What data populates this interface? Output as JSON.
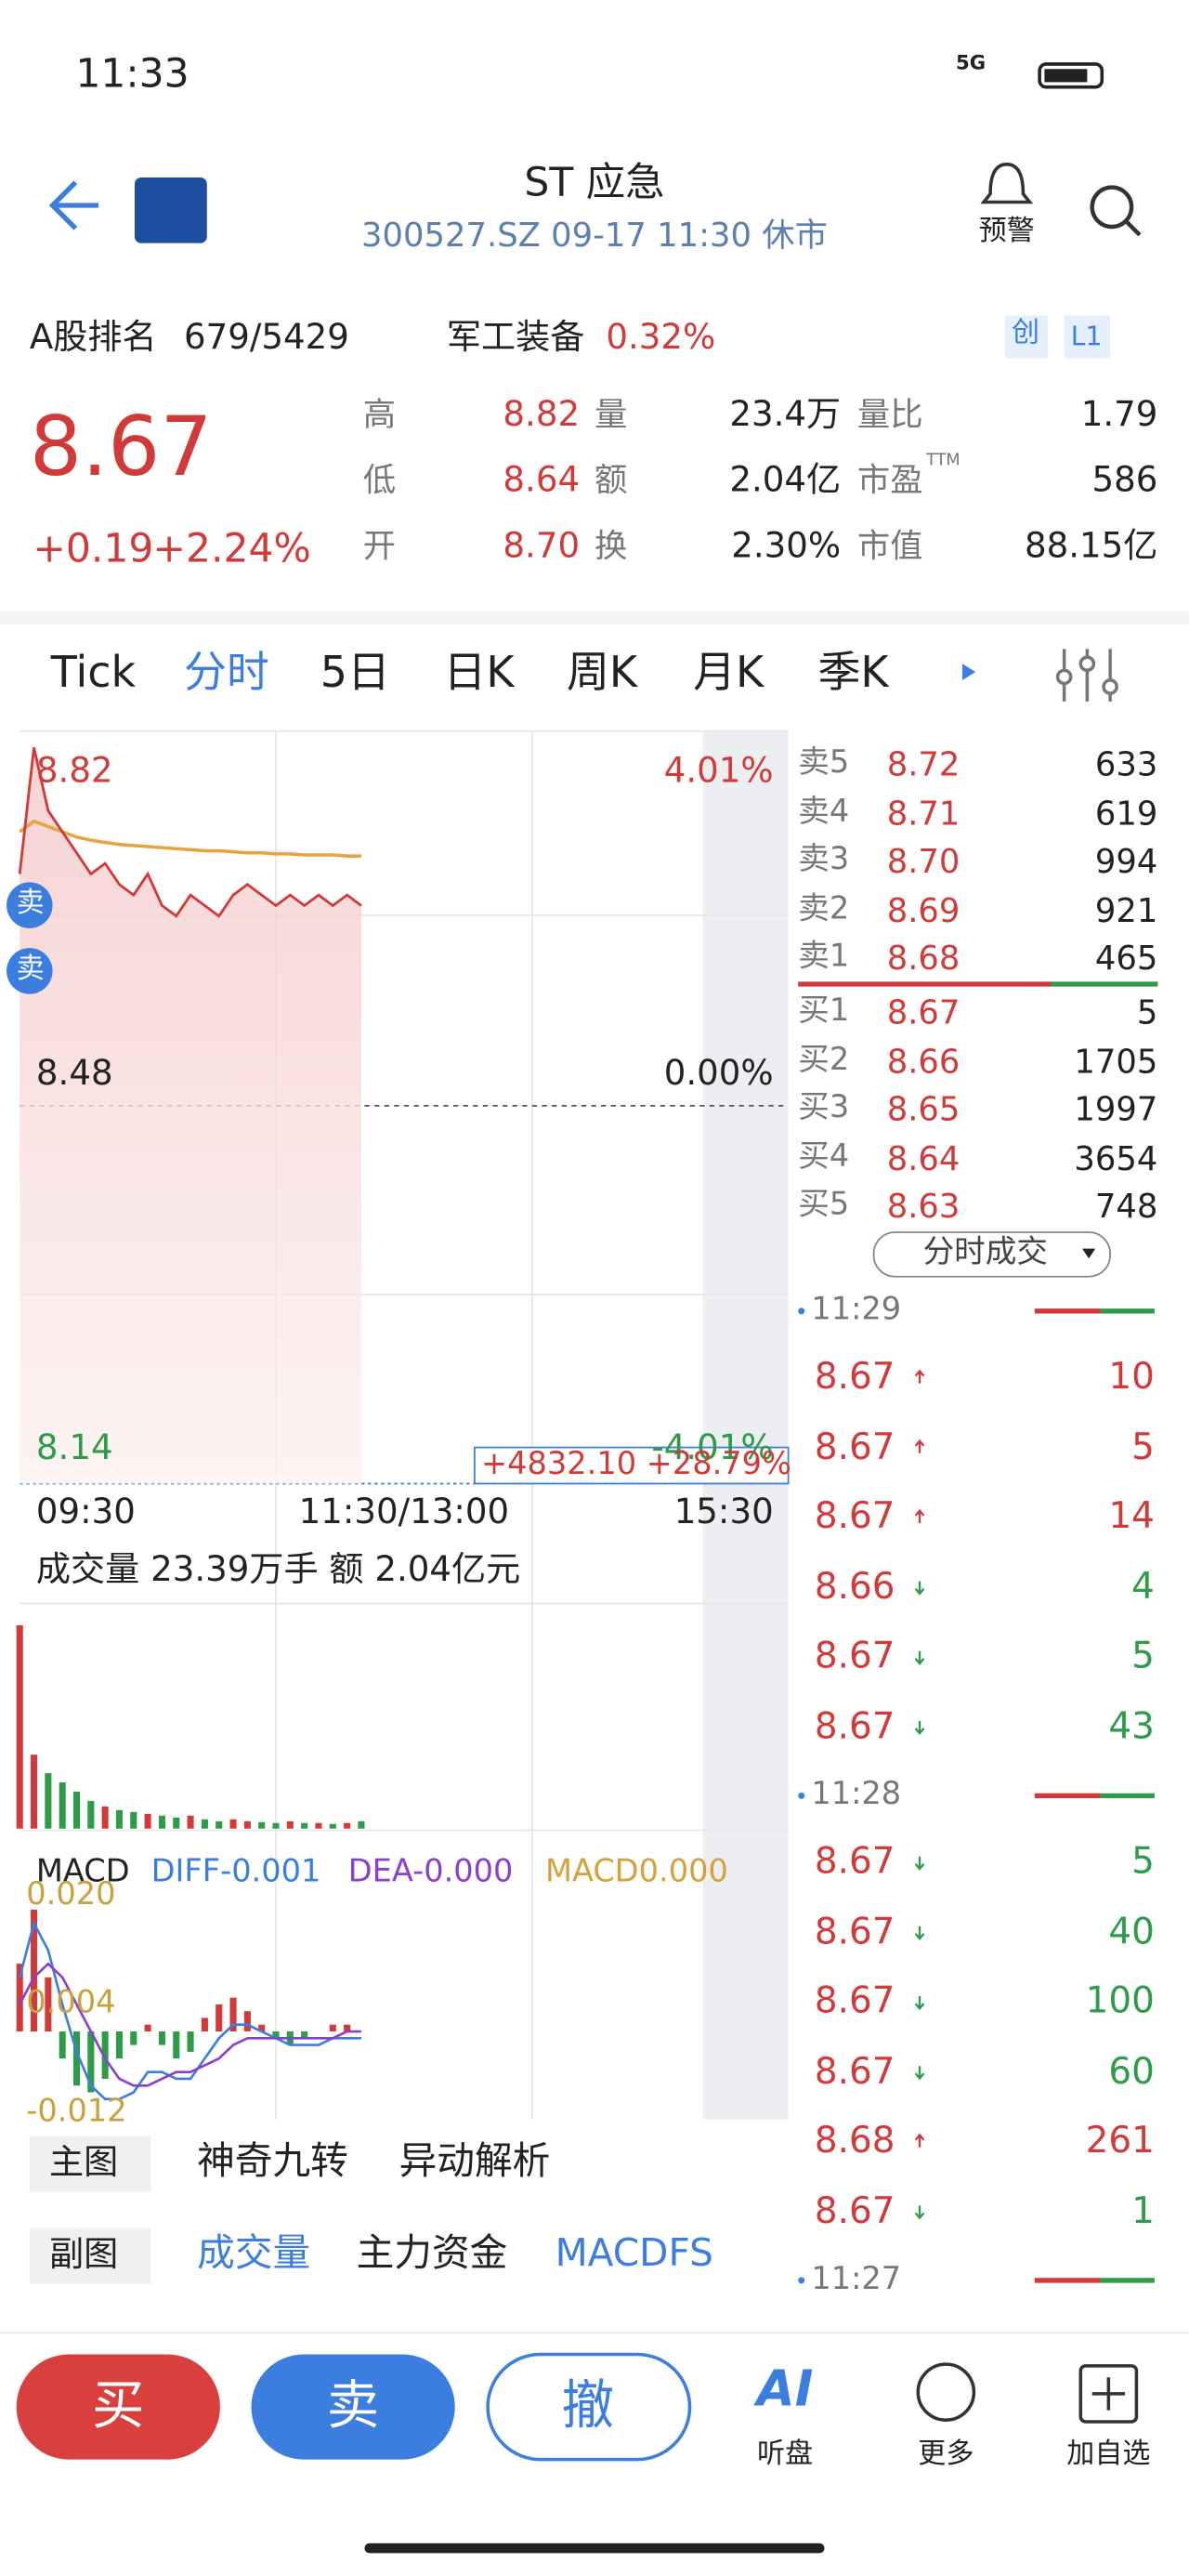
{
  "status": {
    "time": "11:33",
    "network": "5G"
  },
  "header": {
    "title": "ST 应急",
    "subtitle": "300527.SZ 09-17 11:30 休市",
    "alert": "预警"
  },
  "rank": {
    "label": "A股排名",
    "value": "679/5429",
    "sector": "军工装备",
    "sector_change": "0.32%",
    "tags": [
      "创",
      "L1"
    ]
  },
  "quote": {
    "price": "8.67",
    "change": "+0.19",
    "change_pct": "+2.24%",
    "stats": [
      [
        {
          "label": "高",
          "value": "8.82"
        },
        {
          "label": "量",
          "value": "23.4万"
        },
        {
          "label": "量比",
          "value": "1.79"
        }
      ],
      [
        {
          "label": "低",
          "value": "8.64"
        },
        {
          "label": "额",
          "value": "2.04亿"
        },
        {
          "label": "市盈",
          "sup": "TTM",
          "value": "586"
        }
      ],
      [
        {
          "label": "开",
          "value": "8.70"
        },
        {
          "label": "换",
          "value": "2.30%"
        },
        {
          "label": "市值",
          "value": "88.15亿"
        }
      ]
    ]
  },
  "tabs": {
    "items": [
      "Tick",
      "分时",
      "5日",
      "日K",
      "周K",
      "月K",
      "季K"
    ],
    "active": 1
  },
  "intraday": {
    "ylim": [
      8.14,
      8.82
    ],
    "yticks": [
      8.82,
      8.48,
      8.14
    ],
    "pct_labels": [
      "4.01%",
      "0.00%",
      "-4.01%"
    ],
    "xlabels": [
      "09:30",
      "11:30/13:00",
      "15:30"
    ],
    "session_minutes": 240,
    "x": [
      0,
      5,
      10,
      15,
      20,
      25,
      30,
      35,
      40,
      45,
      50,
      55,
      60,
      65,
      70,
      75,
      80,
      85,
      90,
      95,
      100,
      105,
      110,
      115,
      120
    ],
    "prices": [
      8.7,
      8.82,
      8.76,
      8.74,
      8.72,
      8.7,
      8.71,
      8.69,
      8.68,
      8.7,
      8.67,
      8.66,
      8.68,
      8.67,
      8.66,
      8.68,
      8.69,
      8.68,
      8.67,
      8.68,
      8.67,
      8.68,
      8.67,
      8.68,
      8.67
    ],
    "avg": [
      8.74,
      8.75,
      8.745,
      8.74,
      8.735,
      8.732,
      8.73,
      8.728,
      8.727,
      8.726,
      8.725,
      8.724,
      8.723,
      8.722,
      8.722,
      8.721,
      8.72,
      8.72,
      8.719,
      8.719,
      8.718,
      8.718,
      8.718,
      8.717,
      8.717
    ],
    "badge": "+4832.10 +28.79%",
    "markers": [
      "卖",
      "卖"
    ],
    "volume_text": "成交量 23.39万手 额 2.04亿元",
    "volume": {
      "ylim": [
        0,
        12000
      ],
      "values": [
        11000,
        4000,
        3000,
        2500,
        2000,
        1500,
        1200,
        1000,
        900,
        800,
        700,
        600,
        700,
        500,
        400,
        500,
        400,
        350,
        300,
        400,
        300,
        300,
        250,
        300,
        400
      ]
    },
    "macd": {
      "labels": [
        "MACD",
        "DIFF-0.001",
        "DEA-0.000",
        "MACD0.000"
      ],
      "ylim": [
        -0.013,
        0.021
      ],
      "yticks": [
        {
          "value": 0.02,
          "label": "0.020"
        },
        0.004,
        -0.012
      ],
      "hist": [
        0.01,
        0.018,
        0.008,
        -0.004,
        -0.008,
        -0.009,
        -0.007,
        -0.004,
        -0.002,
        0.001,
        -0.002,
        -0.004,
        -0.003,
        0.002,
        0.004,
        0.005,
        0.003,
        0.001,
        -0.001,
        -0.002,
        -0.001,
        0,
        0.001,
        0.001,
        0
      ],
      "diff": [
        0.008,
        0.016,
        0.012,
        0.004,
        -0.003,
        -0.008,
        -0.01,
        -0.01,
        -0.009,
        -0.006,
        -0.006,
        -0.007,
        -0.007,
        -0.004,
        -0.001,
        0.001,
        0.001,
        0,
        -0.001,
        -0.002,
        -0.002,
        -0.002,
        -0.001,
        -0.001,
        -0.001
      ],
      "dea": [
        0.004,
        0.008,
        0.01,
        0.008,
        0.004,
        0,
        -0.004,
        -0.007,
        -0.008,
        -0.008,
        -0.007,
        -0.006,
        -0.006,
        -0.005,
        -0.004,
        -0.002,
        -0.001,
        -0.001,
        -0.001,
        -0.001,
        -0.001,
        -0.001,
        -0.001,
        0,
        0
      ]
    }
  },
  "order_book": {
    "asks": [
      {
        "label": "卖5",
        "price": "8.72",
        "volume": "633"
      },
      {
        "label": "卖4",
        "price": "8.71",
        "volume": "619"
      },
      {
        "label": "卖3",
        "price": "8.70",
        "volume": "994"
      },
      {
        "label": "卖2",
        "price": "8.69",
        "volume": "921"
      },
      {
        "label": "卖1",
        "price": "8.68",
        "volume": "465"
      }
    ],
    "bids": [
      {
        "label": "买1",
        "price": "8.67",
        "volume": "5"
      },
      {
        "label": "买2",
        "price": "8.66",
        "volume": "1705"
      },
      {
        "label": "买3",
        "price": "8.65",
        "volume": "1997"
      },
      {
        "label": "买4",
        "price": "8.64",
        "volume": "3654"
      },
      {
        "label": "买5",
        "price": "8.63",
        "volume": "748"
      }
    ]
  },
  "trades": {
    "title": "分时成交",
    "groups": [
      {
        "time": "11:29",
        "rows": [
          {
            "price": "8.67",
            "dir": "up",
            "volume": "10"
          },
          {
            "price": "8.67",
            "dir": "up",
            "volume": "5"
          },
          {
            "price": "8.67",
            "dir": "up",
            "volume": "14"
          },
          {
            "price": "8.66",
            "dir": "down",
            "volume": "4"
          },
          {
            "price": "8.67",
            "dir": "down",
            "volume": "5"
          },
          {
            "price": "8.67",
            "dir": "down",
            "volume": "43"
          }
        ]
      },
      {
        "time": "11:28",
        "rows": [
          {
            "price": "8.67",
            "dir": "down",
            "volume": "5"
          },
          {
            "price": "8.67",
            "dir": "down",
            "volume": "40"
          },
          {
            "price": "8.67",
            "dir": "down",
            "volume": "100"
          },
          {
            "price": "8.67",
            "dir": "down",
            "volume": "60"
          },
          {
            "price": "8.68",
            "dir": "up",
            "volume": "261"
          },
          {
            "price": "8.67",
            "dir": "down",
            "volume": "1"
          }
        ]
      },
      {
        "time": "11:27",
        "rows": []
      }
    ]
  },
  "indicators": {
    "main": {
      "label": "主图",
      "items": [
        "神奇九转",
        "异动解析"
      ]
    },
    "sub": {
      "label": "副图",
      "items": [
        "成交量",
        "主力资金",
        "MACDFS"
      ],
      "active": [
        0,
        2
      ]
    }
  },
  "actions": {
    "buy": "买",
    "sell": "卖",
    "cancel": "撤",
    "ai": "AI",
    "listen": "听盘",
    "more": "更多",
    "add": "加自选"
  }
}
